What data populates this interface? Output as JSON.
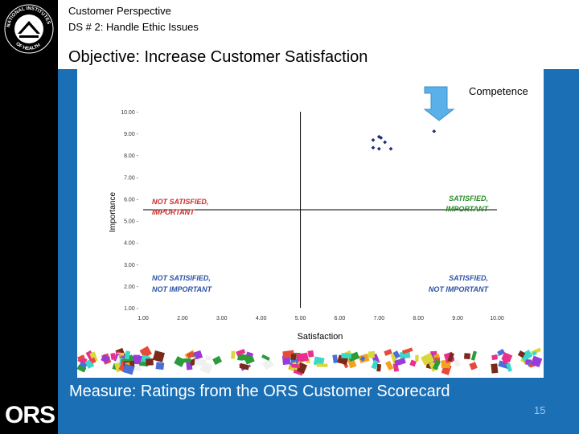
{
  "header": {
    "subtitle1": "Customer Perspective",
    "subtitle2": "DS # 2: Handle Ethic Issues",
    "objective": "Objective: Increase Customer Satisfaction"
  },
  "callout": {
    "label": "Competence"
  },
  "footer": {
    "measure": "Measure: Ratings from the ORS Customer Scorecard",
    "page_number": "15"
  },
  "logos": {
    "nih_text": "NATIONAL INSTITUTES OF HEALTH",
    "ors": "ORS"
  },
  "colors": {
    "background": "#1a6fb5",
    "sidebar": "#000000",
    "point": "#1f2f7a",
    "red_label": "#cc2a2a",
    "blue_label": "#2a52a6"
  },
  "chart_data": {
    "type": "scatter",
    "xlabel": "Satisfaction",
    "ylabel": "Importance",
    "xlim": [
      1,
      10
    ],
    "ylim": [
      1,
      10
    ],
    "x_ticks": [
      "1.00",
      "2.00",
      "3.00",
      "4.00",
      "5.00",
      "6.00",
      "7.00",
      "8.00",
      "9.00",
      "10.00"
    ],
    "y_ticks": [
      "1.00",
      "2.00",
      "3.00",
      "4.00",
      "5.00",
      "6.00",
      "7.00",
      "8.00",
      "9.00",
      "10.00"
    ],
    "divider_x": 5.0,
    "divider_y": 5.5,
    "points": [
      {
        "x": 6.85,
        "y": 8.7
      },
      {
        "x": 6.85,
        "y": 8.35
      },
      {
        "x": 7.0,
        "y": 8.85
      },
      {
        "x": 7.05,
        "y": 8.8
      },
      {
        "x": 7.15,
        "y": 8.6
      },
      {
        "x": 7.0,
        "y": 8.3
      },
      {
        "x": 7.3,
        "y": 8.3
      },
      {
        "x": 8.4,
        "y": 9.1
      }
    ],
    "quadrants": {
      "tl": [
        "NOT SATISFIED,",
        "IMPORTANT"
      ],
      "tr": [
        "SATISFIED,",
        "IMPORTANT"
      ],
      "bl": [
        "NOT SATISIFIED,",
        "NOT IMPORTANT"
      ],
      "br": [
        "SATISFIED,",
        "NOT IMPORTANT"
      ]
    }
  }
}
